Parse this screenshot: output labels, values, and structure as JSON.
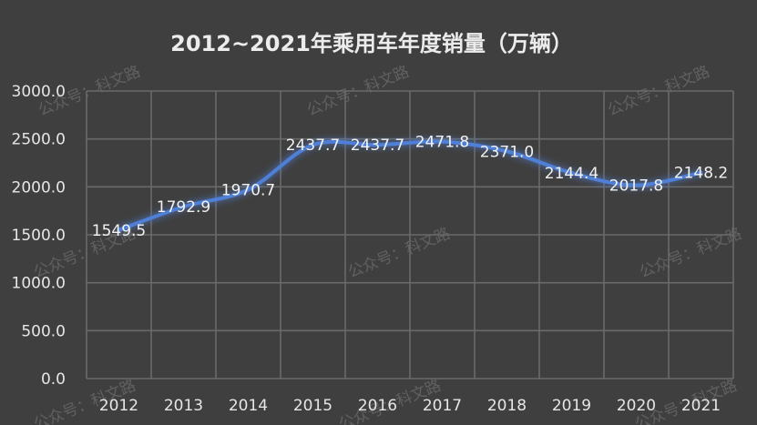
{
  "chart_data": {
    "type": "line",
    "title": "2012~2021年乘用车年度销量（万辆）",
    "xlabel": "",
    "ylabel": "",
    "categories": [
      "2012",
      "2013",
      "2014",
      "2015",
      "2016",
      "2017",
      "2018",
      "2019",
      "2020",
      "2021"
    ],
    "series": [
      {
        "values": [
          1549.5,
          1792.9,
          1970.7,
          2437.7,
          2437.7,
          2471.8,
          2371.0,
          2144.4,
          2017.8,
          2148.2
        ]
      }
    ],
    "data_labels": [
      "1549.5",
      "1792.9",
      "1970.7",
      "2437.7",
      "2437.7",
      "2471.8",
      "2371.0",
      "2144.4",
      "2017.8",
      "2148.2"
    ],
    "ylim": [
      0,
      3000
    ],
    "yticks": [
      "0.0",
      "500.0",
      "1000.0",
      "1500.0",
      "2000.0",
      "2500.0",
      "3000.0"
    ],
    "grid": true,
    "line_color": "#4f7fd6",
    "background": "#3f3f3f"
  },
  "watermark": "公众号：科文路"
}
